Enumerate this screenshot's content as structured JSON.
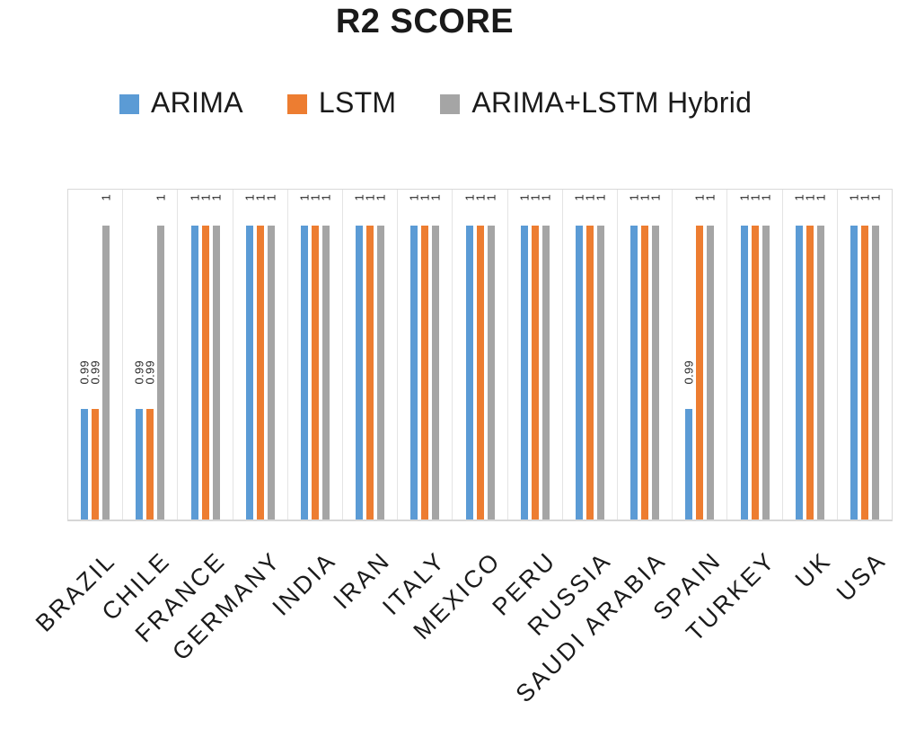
{
  "title": "R2 SCORE",
  "legend": {
    "items": [
      {
        "label": "ARIMA",
        "color": "#5B9BD5"
      },
      {
        "label": "LSTM",
        "color": "#ED7D31"
      },
      {
        "label": "ARIMA+LSTM Hybrid",
        "color": "#A5A5A5"
      }
    ]
  },
  "chart_data": {
    "type": "bar",
    "title": "R2 SCORE",
    "categories": [
      "BRAZIL",
      "CHILE",
      "FRANCE",
      "GERMANY",
      "INDIA",
      "IRAN",
      "ITALY",
      "MEXICO",
      "PERU",
      "RUSSIA",
      "SAUDI ARABIA",
      "SPAIN",
      "TURKEY",
      "UK",
      "USA"
    ],
    "series": [
      {
        "name": "ARIMA",
        "color": "#5B9BD5",
        "values": [
          0.99,
          0.99,
          1,
          1,
          1,
          1,
          1,
          1,
          1,
          1,
          1,
          0.99,
          1,
          1,
          1
        ]
      },
      {
        "name": "LSTM",
        "color": "#ED7D31",
        "values": [
          0.99,
          0.99,
          1,
          1,
          1,
          1,
          1,
          1,
          1,
          1,
          1,
          1,
          1,
          1,
          1
        ]
      },
      {
        "name": "ARIMA+LSTM Hybrid",
        "color": "#A5A5A5",
        "values": [
          1,
          1,
          1,
          1,
          1,
          1,
          1,
          1,
          1,
          1,
          1,
          1,
          1,
          1,
          1
        ]
      }
    ],
    "data_labels": true,
    "data_label_rotation": -90,
    "xlabel": "",
    "ylabel": "",
    "ylim": [
      0.984,
      1.002
    ],
    "y_axis_visible": false,
    "grid": "vertical category separators only",
    "legend_position": "top"
  },
  "colors": {
    "plot_border": "#D9D9D9",
    "separator": "#E4E4E4",
    "axis_line": "#D6D6D6",
    "label_text": "#262626"
  }
}
